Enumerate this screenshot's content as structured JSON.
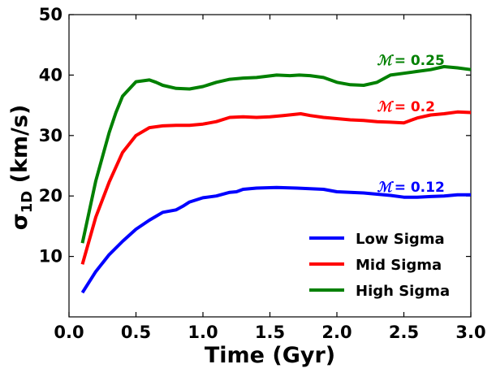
{
  "chart_data": {
    "type": "line",
    "title": "",
    "xlabel": "Time (Gyr)",
    "ylabel": {
      "base": "σ",
      "sub": "1D",
      "unit": " (km/s)"
    },
    "xlim": [
      0,
      3
    ],
    "ylim": [
      0,
      50
    ],
    "xticks": [
      "0.0",
      "0.5",
      "1.0",
      "1.5",
      "2.0",
      "2.5",
      "3.0"
    ],
    "xtick_values": [
      0,
      0.5,
      1.0,
      1.5,
      2.0,
      2.5,
      3.0
    ],
    "yticks": [
      "10",
      "20",
      "30",
      "40",
      "50"
    ],
    "ytick_values": [
      10,
      20,
      30,
      40,
      50
    ],
    "grid": false,
    "legend_position": "lower-right",
    "series": [
      {
        "name": "Low Sigma",
        "color": "#0000ff",
        "x": [
          0.1,
          0.2,
          0.3,
          0.4,
          0.5,
          0.6,
          0.7,
          0.8,
          0.85,
          0.9,
          1.0,
          1.1,
          1.2,
          1.25,
          1.3,
          1.4,
          1.55,
          1.7,
          1.8,
          1.9,
          2.0,
          2.1,
          2.2,
          2.3,
          2.4,
          2.5,
          2.6,
          2.7,
          2.8,
          2.9,
          3.0
        ],
        "values": [
          4.0,
          7.5,
          10.3,
          12.5,
          14.5,
          16.0,
          17.3,
          17.7,
          18.3,
          19.0,
          19.7,
          20.0,
          20.6,
          20.7,
          21.1,
          21.3,
          21.4,
          21.3,
          21.2,
          21.1,
          20.7,
          20.6,
          20.5,
          20.3,
          20.1,
          19.8,
          19.8,
          19.9,
          20.0,
          20.2,
          20.2
        ]
      },
      {
        "name": "Mid Sigma",
        "color": "#ff0000",
        "x": [
          0.1,
          0.2,
          0.3,
          0.4,
          0.5,
          0.6,
          0.7,
          0.8,
          0.9,
          1.0,
          1.1,
          1.2,
          1.3,
          1.4,
          1.5,
          1.6,
          1.73,
          1.8,
          1.9,
          2.0,
          2.1,
          2.2,
          2.3,
          2.4,
          2.5,
          2.6,
          2.7,
          2.8,
          2.9,
          3.0
        ],
        "values": [
          8.7,
          16.5,
          22.3,
          27.2,
          30.0,
          31.3,
          31.6,
          31.7,
          31.7,
          31.9,
          32.3,
          33.0,
          33.1,
          33.0,
          33.1,
          33.3,
          33.6,
          33.3,
          33.0,
          32.8,
          32.6,
          32.5,
          32.3,
          32.2,
          32.1,
          32.9,
          33.4,
          33.6,
          33.9,
          33.8
        ]
      },
      {
        "name": "High Sigma",
        "color": "#008000",
        "x": [
          0.1,
          0.2,
          0.3,
          0.35,
          0.4,
          0.5,
          0.6,
          0.65,
          0.7,
          0.8,
          0.9,
          1.0,
          1.1,
          1.2,
          1.3,
          1.4,
          1.55,
          1.65,
          1.72,
          1.8,
          1.9,
          2.0,
          2.1,
          2.2,
          2.3,
          2.4,
          2.5,
          2.6,
          2.7,
          2.8,
          2.85,
          2.9,
          3.0
        ],
        "values": [
          12.2,
          22.5,
          30.5,
          33.8,
          36.5,
          38.9,
          39.2,
          38.8,
          38.3,
          37.8,
          37.7,
          38.1,
          38.8,
          39.3,
          39.5,
          39.6,
          40.0,
          39.9,
          40.0,
          39.9,
          39.6,
          38.8,
          38.4,
          38.3,
          38.8,
          40.0,
          40.3,
          40.6,
          40.9,
          41.4,
          41.3,
          41.2,
          40.9
        ]
      }
    ],
    "annotations": [
      {
        "symbol": "ℳ",
        "text": "= 0.25",
        "x": 2.3,
        "y": 42.5,
        "color": "#008000"
      },
      {
        "symbol": "ℳ",
        "text": "= 0.2",
        "x": 2.3,
        "y": 34.8,
        "color": "#ff0000"
      },
      {
        "symbol": "ℳ",
        "text": "= 0.12",
        "x": 2.3,
        "y": 21.5,
        "color": "#0000ff"
      }
    ]
  }
}
